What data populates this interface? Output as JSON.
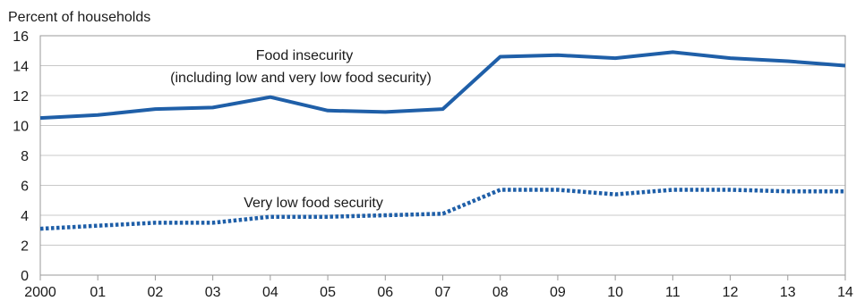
{
  "chart_data": {
    "type": "line",
    "ylabel": "Percent of households",
    "xlabel": "",
    "x_tick_labels": [
      "2000",
      "01",
      "02",
      "03",
      "04",
      "05",
      "06",
      "07",
      "08",
      "09",
      "10",
      "11",
      "12",
      "13",
      "14"
    ],
    "x": [
      2000,
      2001,
      2002,
      2003,
      2004,
      2005,
      2006,
      2007,
      2008,
      2009,
      2010,
      2011,
      2012,
      2013,
      2014
    ],
    "ylim": [
      0,
      16
    ],
    "y_ticks": [
      0,
      2,
      4,
      6,
      8,
      10,
      12,
      14,
      16
    ],
    "grid": true,
    "legend": "none",
    "series": [
      {
        "label_line1": "Food insecurity",
        "label_line2": "(including low and very low food security)",
        "style": "solid",
        "color": "#1f5fa8",
        "values": [
          10.5,
          10.7,
          11.1,
          11.2,
          11.9,
          11.0,
          10.9,
          11.1,
          14.6,
          14.7,
          14.5,
          14.9,
          14.5,
          14.3,
          14.0
        ]
      },
      {
        "label": "Very low food security",
        "style": "dotted",
        "color": "#1f5fa8",
        "values": [
          3.1,
          3.3,
          3.5,
          3.5,
          3.9,
          3.9,
          4.0,
          4.1,
          5.7,
          5.7,
          5.4,
          5.7,
          5.7,
          5.6,
          5.6
        ]
      }
    ]
  }
}
